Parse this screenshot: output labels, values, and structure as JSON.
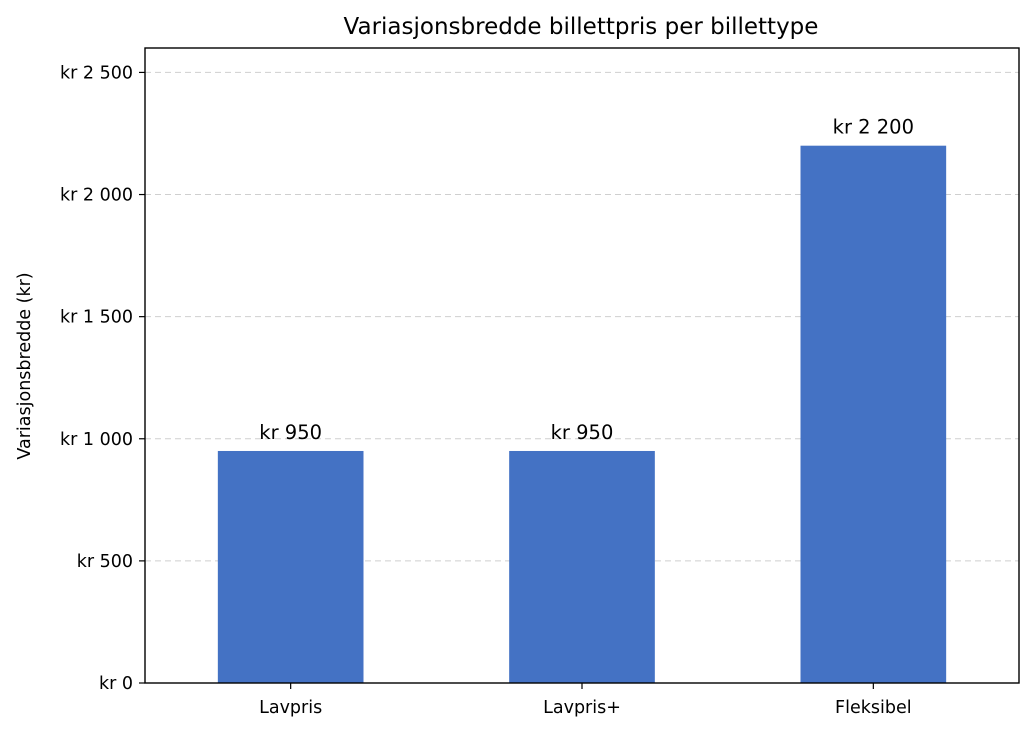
{
  "chart_data": {
    "type": "bar",
    "title": "Variasjonsbredde billettpris per billettype",
    "xlabel": "",
    "ylabel": "Variasjonsbredde (kr)",
    "categories": [
      "Lavpris",
      "Lavpris+",
      "Fleksibel"
    ],
    "values": [
      950,
      950,
      2200
    ],
    "data_labels": [
      "kr 950",
      "kr 950",
      "kr 2 200"
    ],
    "ylim": [
      0,
      2600
    ],
    "y_ticks": [
      0,
      500,
      1000,
      1500,
      2000,
      2500
    ],
    "y_tick_labels": [
      "kr 0",
      "kr 500",
      "kr 1 000",
      "kr 1 500",
      "kr 2 000",
      "kr 2 500"
    ],
    "bar_color": "#4472c4",
    "grid": "horizontal dashed",
    "legend": "none"
  }
}
